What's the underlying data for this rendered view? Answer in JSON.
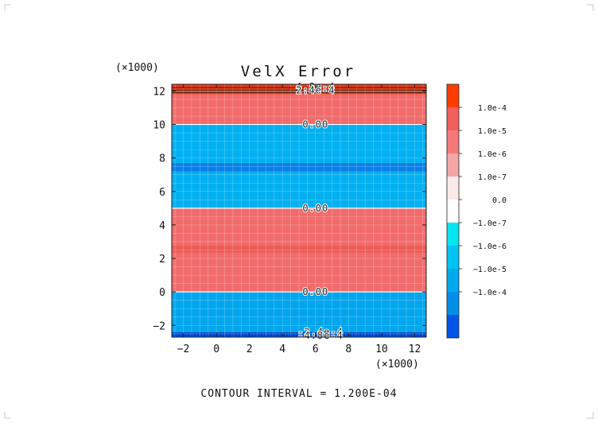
{
  "chart_data": {
    "type": "heatmap",
    "title": "VelX Error",
    "x_multiplier_label": "(×1000)",
    "y_multiplier_label": "(×1000)",
    "xlim": [
      -2.7,
      12.7
    ],
    "ylim": [
      -2.7,
      12.4
    ],
    "x_ticks": [
      -2,
      0,
      2,
      4,
      6,
      8,
      10,
      12
    ],
    "x_tick_labels": [
      "−2",
      "0",
      "2",
      "4",
      "6",
      "8",
      "10",
      "12"
    ],
    "y_ticks": [
      -2,
      0,
      2,
      4,
      6,
      8,
      10,
      12
    ],
    "y_tick_labels": [
      "−2",
      "0",
      "2",
      "4",
      "6",
      "8",
      "10",
      "12"
    ],
    "grid": true,
    "bands": [
      {
        "y0": -2.7,
        "y1": -2.4,
        "color": "#0050e6"
      },
      {
        "y0": -2.4,
        "y1": 0.0,
        "color": "#00a6ee"
      },
      {
        "y0": 0.0,
        "y1": 2.3,
        "color": "#f26b6b"
      },
      {
        "y0": 2.3,
        "y1": 2.8,
        "color": "#ec5a55"
      },
      {
        "y0": 2.8,
        "y1": 5.0,
        "color": "#f26b6b"
      },
      {
        "y0": 5.0,
        "y1": 7.2,
        "color": "#00b0f0"
      },
      {
        "y0": 7.2,
        "y1": 7.7,
        "color": "#0a7ee8"
      },
      {
        "y0": 7.7,
        "y1": 10.0,
        "color": "#00b0f0"
      },
      {
        "y0": 10.0,
        "y1": 11.8,
        "color": "#f26b6b"
      },
      {
        "y0": 11.8,
        "y1": 12.4,
        "color": "#ee3a14"
      }
    ],
    "contour_labels": [
      {
        "x": 6.0,
        "y": 12.25,
        "text": "4.8e-4"
      },
      {
        "x": 6.0,
        "y": 12.05,
        "text": "2.4e-4"
      },
      {
        "x": 6.0,
        "y": 10.0,
        "text": "0.00"
      },
      {
        "x": 6.0,
        "y": 5.0,
        "text": "0.00"
      },
      {
        "x": 6.0,
        "y": 0.0,
        "text": "0.00"
      },
      {
        "x": 6.3,
        "y": -2.4,
        "text": "-2.4e-4"
      },
      {
        "x": 6.3,
        "y": -2.6,
        "text": "-4.8e-4"
      }
    ],
    "colorbar": {
      "colors_top_to_bottom": [
        "#ff3c00",
        "#f0605c",
        "#f47a7a",
        "#f4a6a6",
        "#fbeaea",
        "#ffffff",
        "#00e6ef",
        "#00c3f5",
        "#00aaf0",
        "#008fe8",
        "#0055e6"
      ],
      "tick_labels": [
        "1.0e-4",
        "1.0e-5",
        "1.0e-6",
        "1.0e-7",
        "0.0",
        "−1.0e-7",
        "−1.0e-6",
        "−1.0e-5",
        "−1.0e-4"
      ]
    },
    "footer": "CONTOUR INTERVAL = 1.200E-04"
  }
}
